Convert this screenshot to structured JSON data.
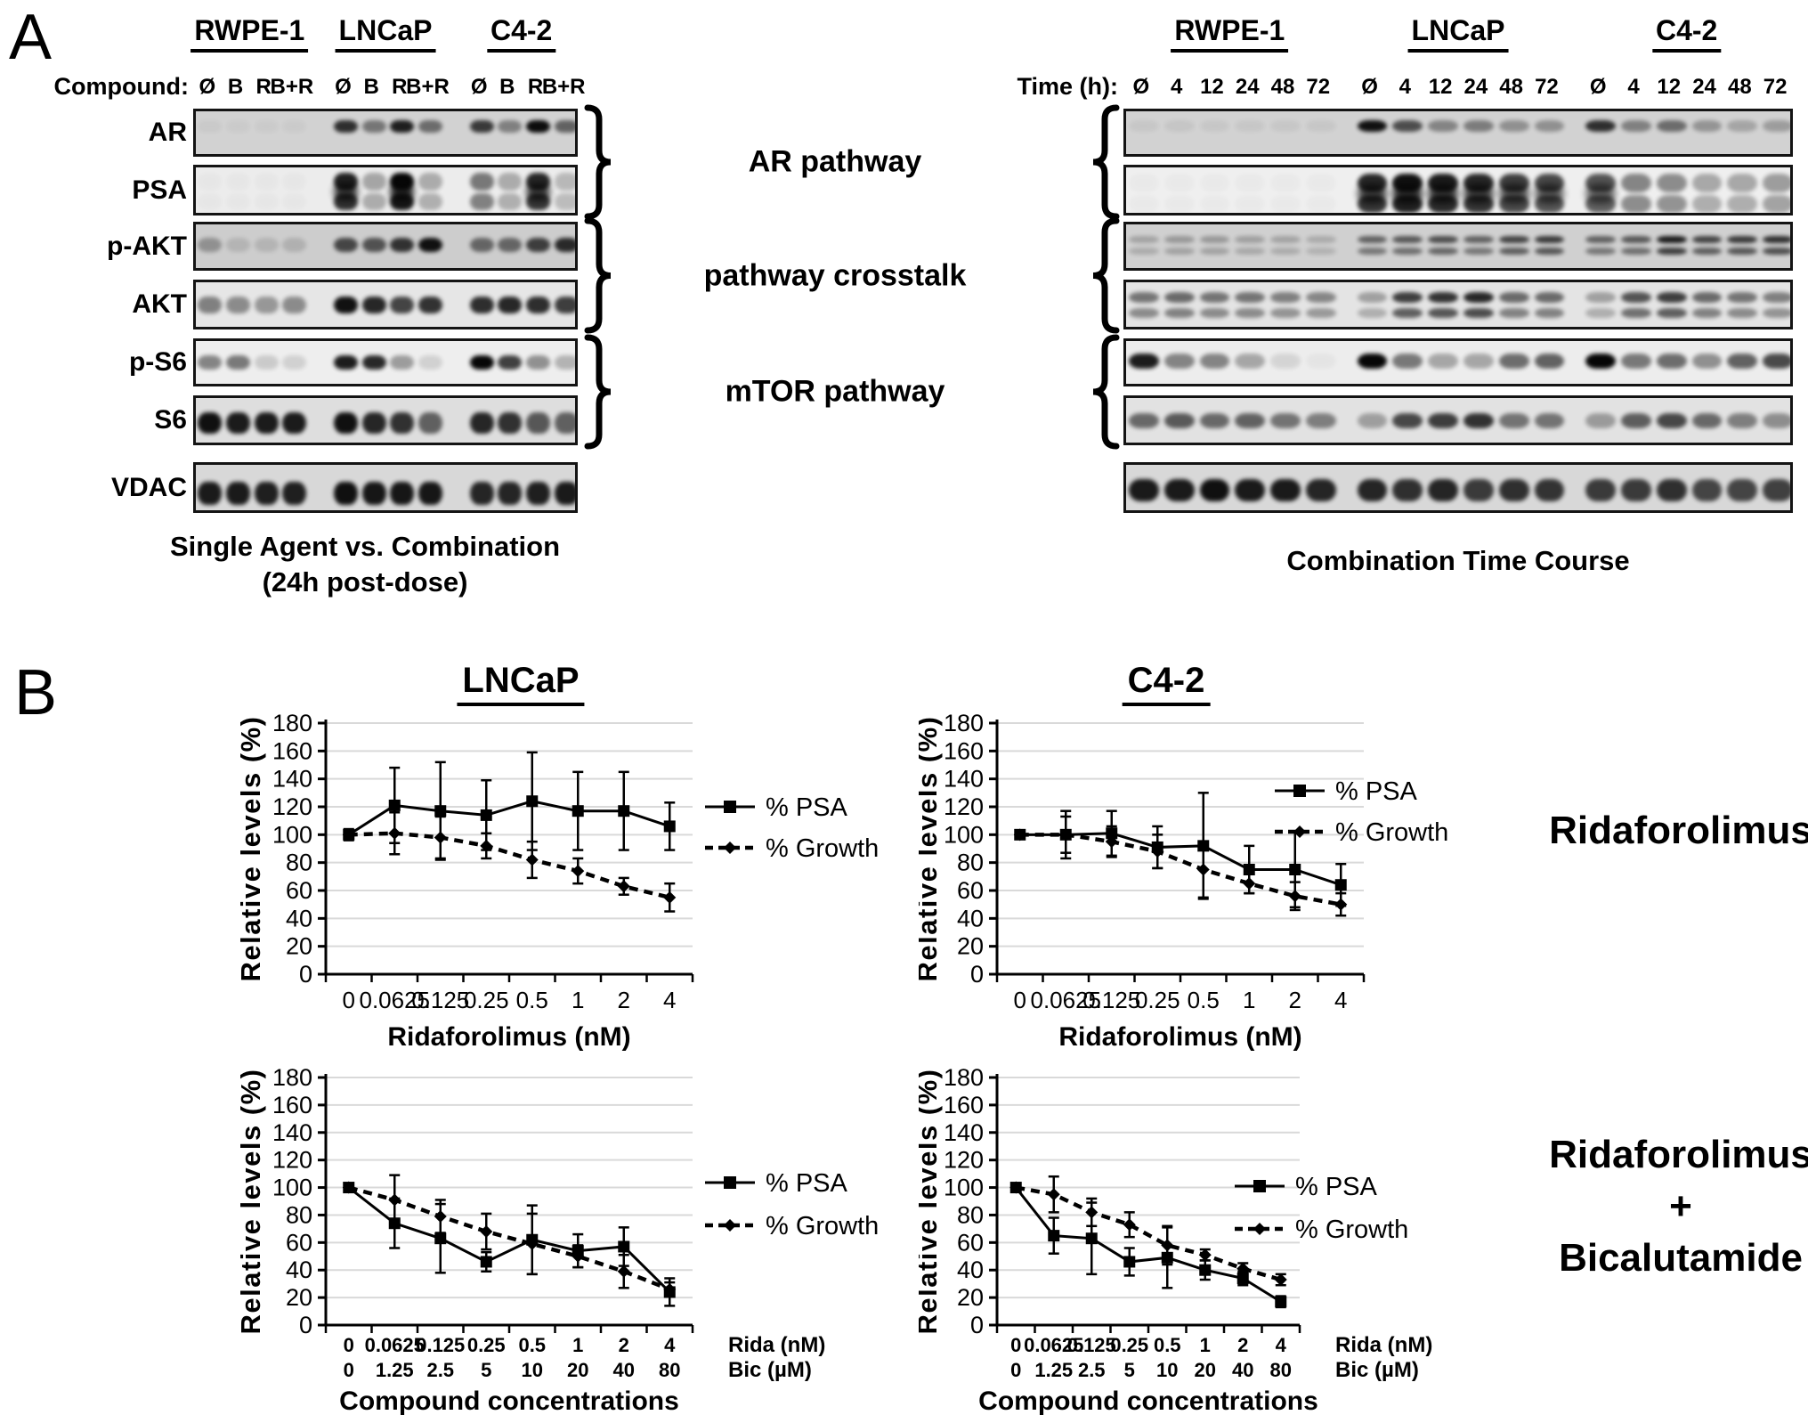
{
  "colors": {
    "ink": "#000000",
    "grid": "#d9d9d9",
    "blot_border": "#141414",
    "background": "#ffffff"
  },
  "panel_a": {
    "label": "A",
    "pathway_labels": [
      "AR pathway",
      "pathway crosstalk",
      "mTOR pathway"
    ],
    "left": {
      "header": "Compound:",
      "groups": [
        "RWPE-1",
        "LNCaP",
        "C4-2"
      ],
      "lanes": [
        "Ø",
        "B",
        "R",
        "B+R"
      ],
      "caption": [
        "Single Agent vs. Combination",
        "(24h post-dose)"
      ],
      "rows": [
        {
          "label": "AR",
          "bg": "#d2d2d2",
          "band_y": 0.32,
          "band_h": 0.26,
          "style": "single",
          "lanes": [
            0.04,
            0.03,
            0.03,
            0.03,
            0.8,
            0.45,
            0.88,
            0.5,
            0.75,
            0.4,
            0.97,
            0.55
          ]
        },
        {
          "label": "PSA",
          "bg": "#ececec",
          "band_y": 0.42,
          "band_h": 0.34,
          "style": "smear",
          "lanes": [
            0.02,
            0.02,
            0.02,
            0.02,
            0.88,
            0.3,
            1.0,
            0.28,
            0.5,
            0.28,
            0.85,
            0.22
          ]
        },
        {
          "label": "p-AKT",
          "bg": "#cdcdcd",
          "band_y": 0.42,
          "band_h": 0.28,
          "style": "single",
          "lanes": [
            0.3,
            0.12,
            0.12,
            0.14,
            0.68,
            0.62,
            0.78,
            0.95,
            0.52,
            0.52,
            0.72,
            0.82
          ]
        },
        {
          "label": "AKT",
          "bg": "#e6e6e6",
          "band_y": 0.45,
          "band_h": 0.34,
          "style": "single",
          "lanes": [
            0.45,
            0.4,
            0.35,
            0.4,
            0.95,
            0.85,
            0.72,
            0.8,
            0.82,
            0.85,
            0.82,
            0.75
          ]
        },
        {
          "label": "p-S6",
          "bg": "#eeeeee",
          "band_y": 0.45,
          "band_h": 0.3,
          "style": "single",
          "lanes": [
            0.45,
            0.5,
            0.15,
            0.12,
            0.9,
            0.85,
            0.35,
            0.12,
            1.0,
            0.75,
            0.4,
            0.25
          ]
        },
        {
          "label": "S6",
          "bg": "#dedede",
          "band_y": 0.5,
          "band_h": 0.42,
          "style": "single",
          "lanes": [
            0.95,
            0.9,
            0.9,
            0.9,
            0.95,
            0.85,
            0.8,
            0.58,
            0.85,
            0.8,
            0.62,
            0.58
          ]
        },
        {
          "label": "VDAC",
          "bg": "#d8d8d8",
          "band_y": 0.56,
          "band_h": 0.46,
          "style": "single",
          "lanes": [
            0.9,
            0.9,
            0.88,
            0.88,
            0.95,
            0.92,
            0.92,
            0.92,
            0.85,
            0.85,
            0.88,
            0.9
          ]
        }
      ]
    },
    "right": {
      "header": "Time (h):",
      "groups": [
        "RWPE-1",
        "LNCaP",
        "C4-2"
      ],
      "lanes": [
        "Ø",
        "4",
        "12",
        "24",
        "48",
        "72"
      ],
      "caption": [
        "Combination Time Course"
      ],
      "rows": [
        {
          "label": "AR",
          "bg": "#d2d2d2",
          "band_y": 0.3,
          "band_h": 0.24,
          "style": "single",
          "lanes": [
            0.05,
            0.06,
            0.05,
            0.05,
            0.05,
            0.05,
            0.95,
            0.65,
            0.38,
            0.42,
            0.32,
            0.32,
            0.8,
            0.4,
            0.5,
            0.3,
            0.22,
            0.26
          ]
        },
        {
          "label": "PSA",
          "bg": "#efefef",
          "band_y": 0.45,
          "band_h": 0.36,
          "style": "smear",
          "lanes": [
            0.02,
            0.02,
            0.02,
            0.02,
            0.02,
            0.02,
            0.85,
            0.95,
            0.9,
            0.85,
            0.75,
            0.7,
            0.65,
            0.45,
            0.42,
            0.3,
            0.3,
            0.35
          ]
        },
        {
          "label": "p-AKT",
          "bg": "#d0d0d0",
          "band_y": 0.4,
          "band_h": 0.2,
          "style": "double",
          "lanes": [
            0.22,
            0.28,
            0.28,
            0.24,
            0.22,
            0.18,
            0.55,
            0.6,
            0.65,
            0.55,
            0.7,
            0.75,
            0.55,
            0.6,
            0.9,
            0.7,
            0.75,
            0.8
          ]
        },
        {
          "label": "AKT",
          "bg": "#e4e4e4",
          "band_y": 0.42,
          "band_h": 0.26,
          "style": "double",
          "lanes": [
            0.5,
            0.55,
            0.5,
            0.5,
            0.45,
            0.42,
            0.3,
            0.75,
            0.8,
            0.85,
            0.55,
            0.55,
            0.3,
            0.65,
            0.75,
            0.55,
            0.5,
            0.45
          ]
        },
        {
          "label": "p-S6",
          "bg": "#ededed",
          "band_y": 0.42,
          "band_h": 0.32,
          "style": "single",
          "lanes": [
            0.9,
            0.45,
            0.45,
            0.3,
            0.1,
            0.03,
            1.0,
            0.5,
            0.3,
            0.3,
            0.55,
            0.6,
            1.0,
            0.5,
            0.55,
            0.4,
            0.6,
            0.7
          ]
        },
        {
          "label": "S6",
          "bg": "#e2e2e2",
          "band_y": 0.45,
          "band_h": 0.3,
          "style": "single",
          "lanes": [
            0.55,
            0.62,
            0.55,
            0.58,
            0.5,
            0.45,
            0.3,
            0.7,
            0.75,
            0.8,
            0.5,
            0.5,
            0.32,
            0.6,
            0.7,
            0.55,
            0.45,
            0.38
          ]
        },
        {
          "label": "VDAC",
          "bg": "#d8d8d8",
          "band_y": 0.5,
          "band_h": 0.44,
          "style": "single",
          "lanes": [
            0.9,
            0.9,
            0.95,
            0.9,
            0.9,
            0.85,
            0.85,
            0.8,
            0.85,
            0.75,
            0.8,
            0.78,
            0.75,
            0.75,
            0.8,
            0.7,
            0.7,
            0.72
          ]
        }
      ]
    }
  },
  "panel_b": {
    "label": "B",
    "col_titles": [
      "LNCaP",
      "C4-2"
    ],
    "row_titles": [
      [
        "Ridaforolimus"
      ],
      [
        "Ridaforolimus",
        "+",
        "Bicalutamide"
      ]
    ]
  },
  "chart_data": [
    {
      "id": "lncap-ridaforolimus",
      "type": "line",
      "cell_line": "LNCaP",
      "title": "",
      "xlabel": "Ridaforolimus (nM)",
      "ylabel": "Relative levels (%)",
      "ylim": [
        0,
        180
      ],
      "ytick_step": 20,
      "grid": true,
      "legend_position": "right",
      "categories": [
        "0",
        "0.0625",
        "0.125",
        "0.25",
        "0.5",
        "1",
        "2",
        "4"
      ],
      "series": [
        {
          "name": "% PSA",
          "line": "solid",
          "marker": "square",
          "values": [
            100,
            121,
            117,
            114,
            124,
            117,
            117,
            106
          ],
          "err": [
            4,
            27,
            35,
            25,
            35,
            28,
            28,
            17
          ]
        },
        {
          "name": "% Growth",
          "line": "dashed",
          "marker": "diamond",
          "values": [
            100,
            101,
            98,
            92,
            82,
            74,
            63,
            55
          ],
          "err": [
            2,
            15,
            15,
            9,
            13,
            9,
            6,
            10
          ]
        }
      ]
    },
    {
      "id": "c42-ridaforolimus",
      "type": "line",
      "cell_line": "C4-2",
      "title": "",
      "xlabel": "Ridaforolimus (nM)",
      "ylabel": "Relative levels (%)",
      "ylim": [
        0,
        180
      ],
      "ytick_step": 20,
      "grid": true,
      "legend_position": "right",
      "categories": [
        "0",
        "0.0625",
        "0.125",
        "0.25",
        "0.5",
        "1",
        "2",
        "4"
      ],
      "series": [
        {
          "name": "% PSA",
          "line": "solid",
          "marker": "square",
          "values": [
            100,
            100,
            101,
            91,
            92,
            75,
            75,
            64
          ],
          "err": [
            3,
            17,
            16,
            15,
            38,
            17,
            27,
            15
          ]
        },
        {
          "name": "% Growth",
          "line": "dashed",
          "marker": "diamond",
          "values": [
            100,
            100,
            95,
            88,
            75,
            65,
            56,
            50
          ],
          "err": [
            2,
            13,
            11,
            12,
            20,
            7,
            10,
            8
          ]
        }
      ]
    },
    {
      "id": "lncap-combination",
      "type": "line",
      "cell_line": "LNCaP",
      "title": "",
      "xlabel": "Compound concentrations",
      "ylabel": "Relative levels (%)",
      "ylim": [
        0,
        180
      ],
      "ytick_step": 20,
      "grid": true,
      "legend_position": "right",
      "categories": [
        "0",
        "0.0625",
        "0.125",
        "0.25",
        "0.5",
        "1",
        "2",
        "4"
      ],
      "categories_row2": [
        "0",
        "1.25",
        "2.5",
        "5",
        "10",
        "20",
        "40",
        "80"
      ],
      "x_row_labels": [
        "Rida (nM)",
        "Bic (µM)"
      ],
      "series": [
        {
          "name": "% PSA",
          "line": "solid",
          "marker": "square",
          "values": [
            100,
            74,
            63,
            46,
            62,
            54,
            57,
            24
          ],
          "err": [
            3,
            18,
            25,
            7,
            25,
            12,
            14,
            10
          ]
        },
        {
          "name": "% Growth",
          "line": "dashed",
          "marker": "diamond",
          "values": [
            100,
            91,
            79,
            68,
            59,
            50,
            39,
            26
          ],
          "err": [
            2,
            18,
            12,
            13,
            22,
            8,
            12,
            5
          ]
        }
      ]
    },
    {
      "id": "c42-combination",
      "type": "line",
      "cell_line": "C4-2",
      "title": "",
      "xlabel": "Compound concentrations",
      "ylabel": "Relative levels (%)",
      "ylim": [
        0,
        180
      ],
      "ytick_step": 20,
      "grid": true,
      "legend_position": "right",
      "categories": [
        "0",
        "0.0625",
        "0.125",
        "0.25",
        "0.5",
        "1",
        "2",
        "4"
      ],
      "categories_row2": [
        "0",
        "1.25",
        "2.5",
        "5",
        "10",
        "20",
        "40",
        "80"
      ],
      "x_row_labels": [
        "Rida (nM)",
        "Bic (µM)"
      ],
      "series": [
        {
          "name": "% PSA",
          "line": "solid",
          "marker": "square",
          "values": [
            100,
            65,
            63,
            46,
            49,
            40,
            34,
            17
          ],
          "err": [
            3,
            13,
            26,
            10,
            22,
            7,
            5,
            4
          ]
        },
        {
          "name": "% Growth",
          "line": "dashed",
          "marker": "diamond",
          "values": [
            100,
            95,
            82,
            73,
            58,
            51,
            41,
            33
          ],
          "err": [
            2,
            13,
            10,
            9,
            14,
            4,
            4,
            4
          ]
        }
      ]
    }
  ]
}
